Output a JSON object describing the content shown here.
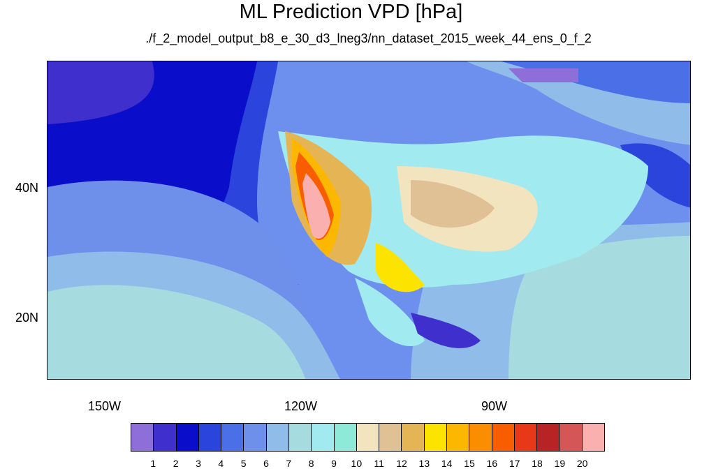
{
  "title": "ML Prediction VPD [hPa]",
  "subtitle": "./f_2_model_output_b8_e_30_d3_lneg3/nn_dataset_2015_week_44_ens_0_f_2",
  "axes": {
    "x_labels": [
      "150W",
      "120W",
      "90W"
    ],
    "y_labels": [
      "40N",
      "20N"
    ]
  },
  "colorbar": {
    "labels": [
      "1",
      "2",
      "3",
      "4",
      "5",
      "6",
      "7",
      "8",
      "9",
      "10",
      "11",
      "12",
      "13",
      "14",
      "15",
      "16",
      "17",
      "18",
      "19",
      "20"
    ],
    "colors": [
      "#8e6fd9",
      "#3f2fcc",
      "#0a0ecb",
      "#2a44dc",
      "#4a6fe6",
      "#6f90ea",
      "#8fbce8",
      "#a6dbe0",
      "#a0eaf0",
      "#8ee9d8",
      "#f3e4c0",
      "#e0c195",
      "#e5b455",
      "#fde300",
      "#fcb800",
      "#fb8e00",
      "#f85e00",
      "#e8381a",
      "#b82325",
      "#d45656",
      "#fbb0b0"
    ]
  }
}
